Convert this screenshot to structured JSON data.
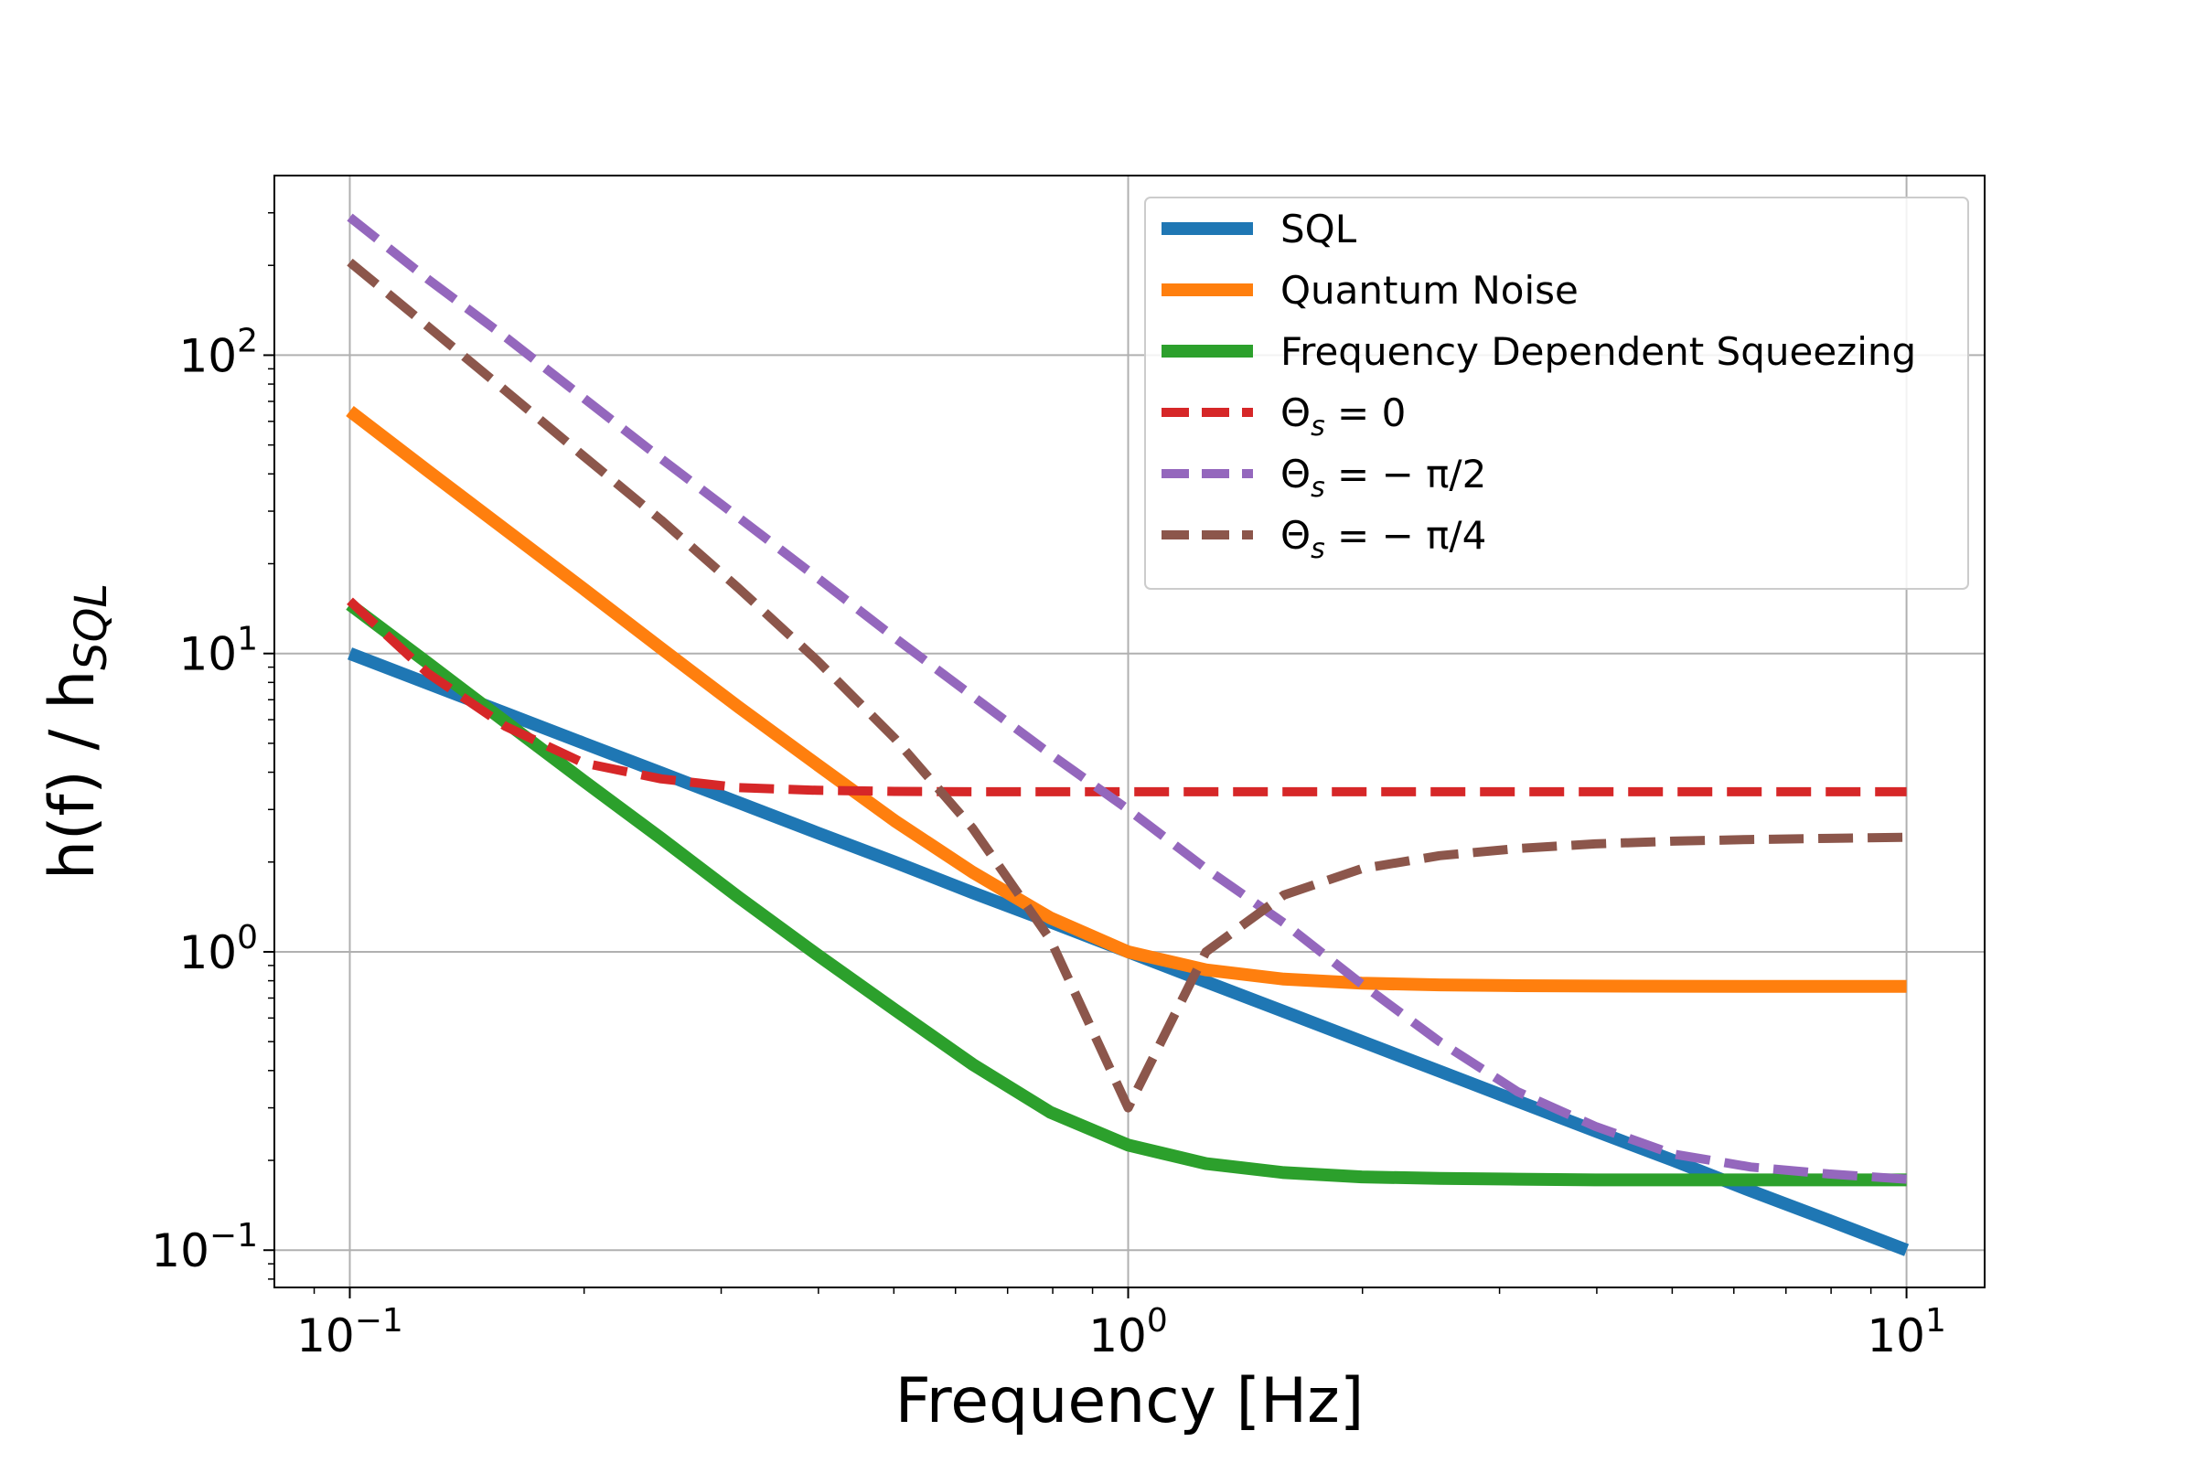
{
  "chart_data": {
    "type": "line",
    "xlabel": "Frequency [Hz]",
    "ylabel": "h(f) / h_SQL",
    "xscale": "log",
    "yscale": "log",
    "xlim": [
      0.08,
      12.6
    ],
    "ylim": [
      0.075,
      400
    ],
    "grid": true,
    "legend_position": "top-right",
    "x_ticks": [
      {
        "value": 0.1,
        "base": "10",
        "exp": "−1"
      },
      {
        "value": 1,
        "base": "10",
        "exp": "0"
      },
      {
        "value": 10,
        "base": "10",
        "exp": "1"
      }
    ],
    "y_ticks": [
      {
        "value": 0.1,
        "base": "10",
        "exp": "−1"
      },
      {
        "value": 1,
        "base": "10",
        "exp": "0"
      },
      {
        "value": 10,
        "base": "10",
        "exp": "1"
      },
      {
        "value": 100,
        "base": "10",
        "exp": "2"
      }
    ],
    "x": [
      0.1,
      0.1259,
      0.1585,
      0.1995,
      0.2512,
      0.3162,
      0.3981,
      0.5012,
      0.631,
      0.7943,
      1.0,
      1.2589,
      1.5849,
      1.9953,
      2.5119,
      3.1623,
      3.9811,
      5.0119,
      6.3096,
      7.9433,
      10.0
    ],
    "series": [
      {
        "name": "SQL",
        "color": "#1f77b4",
        "dash": "solid",
        "values": [
          10,
          7.94,
          6.31,
          5.01,
          3.98,
          3.16,
          2.51,
          2.0,
          1.58,
          1.26,
          1.0,
          0.794,
          0.631,
          0.501,
          0.398,
          0.316,
          0.251,
          0.2,
          0.158,
          0.126,
          0.1
        ]
      },
      {
        "name": "Quantum Noise",
        "color": "#ff7f0e",
        "dash": "solid",
        "values": [
          65,
          41,
          26,
          16.5,
          10.4,
          6.6,
          4.25,
          2.75,
          1.85,
          1.3,
          1.0,
          0.87,
          0.81,
          0.785,
          0.775,
          0.77,
          0.768,
          0.767,
          0.766,
          0.766,
          0.766
        ]
      },
      {
        "name": "Frequency Dependent Squeezing",
        "color": "#2ca02c",
        "dash": "solid",
        "values": [
          14.6,
          9.3,
          5.9,
          3.75,
          2.4,
          1.52,
          0.98,
          0.64,
          0.42,
          0.29,
          0.225,
          0.195,
          0.182,
          0.176,
          0.174,
          0.173,
          0.172,
          0.172,
          0.172,
          0.172,
          0.172
        ]
      },
      {
        "name": "Θs = 0",
        "color": "#d62728",
        "dash": "dashed",
        "values": [
          15,
          8.6,
          5.7,
          4.3,
          3.8,
          3.55,
          3.48,
          3.45,
          3.44,
          3.44,
          3.44,
          3.44,
          3.44,
          3.44,
          3.44,
          3.44,
          3.44,
          3.44,
          3.44,
          3.44,
          3.44
        ]
      },
      {
        "name": "Θs = −π/2",
        "color": "#9467bd",
        "dash": "dashed",
        "values": [
          290,
          180,
          115,
          72,
          45,
          28.5,
          18,
          11.3,
          7.2,
          4.6,
          3.0,
          1.9,
          1.25,
          0.78,
          0.5,
          0.34,
          0.26,
          0.21,
          0.19,
          0.18,
          0.173
        ]
      },
      {
        "name": "Θs = −π/4",
        "color": "#8c564b",
        "dash": "dashed",
        "values": [
          205,
          125,
          76,
          46,
          28,
          16.5,
          9.5,
          5.2,
          2.6,
          1.1,
          0.3,
          1.0,
          1.55,
          1.9,
          2.1,
          2.22,
          2.3,
          2.35,
          2.38,
          2.4,
          2.42
        ]
      }
    ],
    "legend": [
      {
        "label": "SQL",
        "sub": "",
        "tail": ""
      },
      {
        "label": "Quantum Noise",
        "sub": "",
        "tail": ""
      },
      {
        "label": "Frequency Dependent Squeezing",
        "sub": "",
        "tail": ""
      },
      {
        "label": "Θ",
        "sub": "s",
        "tail": " = 0"
      },
      {
        "label": "Θ",
        "sub": "s",
        "tail": " = − π/2"
      },
      {
        "label": "Θ",
        "sub": "s",
        "tail": " = − π/4"
      }
    ],
    "ylabel_parts": {
      "main": "h(f) / h",
      "sub": "SQL"
    }
  }
}
